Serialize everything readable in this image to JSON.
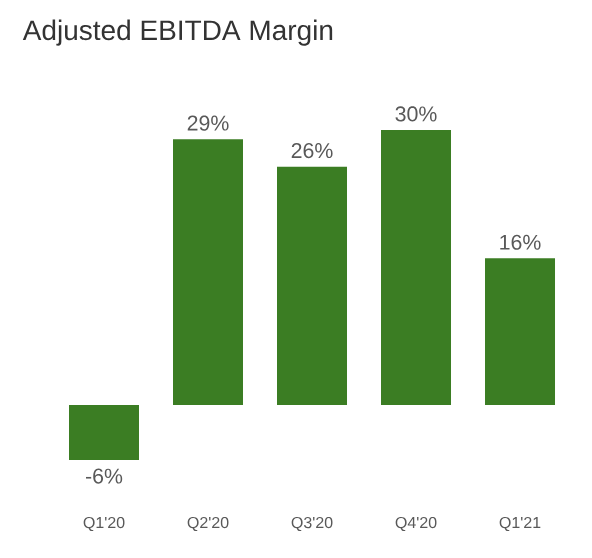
{
  "chart_data": {
    "type": "bar",
    "title": "Adjusted EBITDA Margin",
    "categories": [
      "Q1'20",
      "Q2'20",
      "Q3'20",
      "Q4'20",
      "Q1'21"
    ],
    "values": [
      -6,
      29,
      26,
      30,
      16
    ],
    "value_labels": [
      "-6%",
      "29%",
      "26%",
      "30%",
      "16%"
    ],
    "color": "#3b7d23"
  }
}
